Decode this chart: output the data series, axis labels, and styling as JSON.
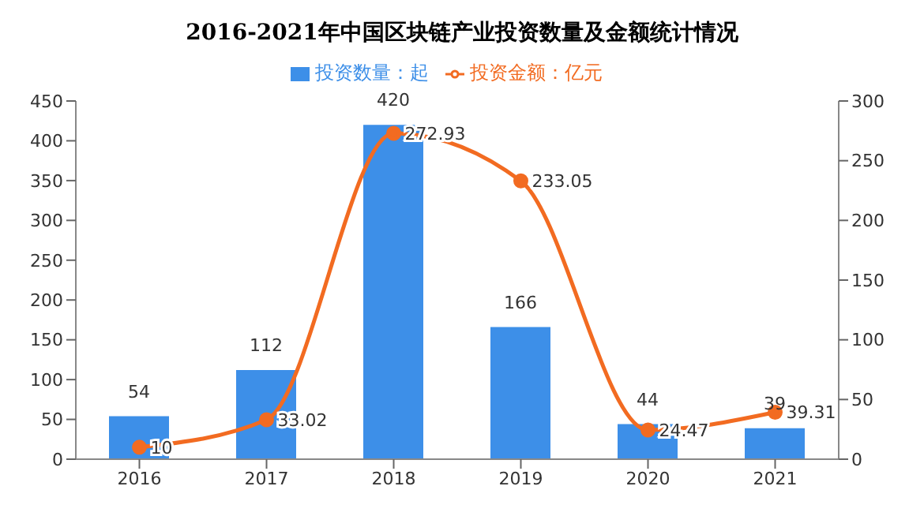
{
  "chart_data": {
    "type": "bar",
    "title": "2016-2021年中国区块链产业投资数量及金额统计情况",
    "categories": [
      "2016",
      "2017",
      "2018",
      "2019",
      "2020",
      "2021"
    ],
    "series": [
      {
        "name": "投资数量：起",
        "color": "#3d8fe8",
        "values": [
          54,
          112,
          420,
          166,
          44,
          39
        ]
      },
      {
        "name": "投资金额：亿元",
        "type": "line",
        "axis": "y2",
        "color": "#f26b21",
        "values": [
          10,
          33.02,
          272.93,
          233.05,
          24.47,
          39.31
        ]
      }
    ],
    "ylim": [
      0,
      450
    ],
    "yticks": [
      0,
      50,
      100,
      150,
      200,
      250,
      300,
      350,
      400,
      450
    ],
    "y2lim": [
      0,
      300
    ],
    "y2ticks": [
      0,
      50,
      100,
      150,
      200,
      250,
      300
    ],
    "legend": "top",
    "marker": "circle",
    "data_labels": true,
    "grid": false
  }
}
